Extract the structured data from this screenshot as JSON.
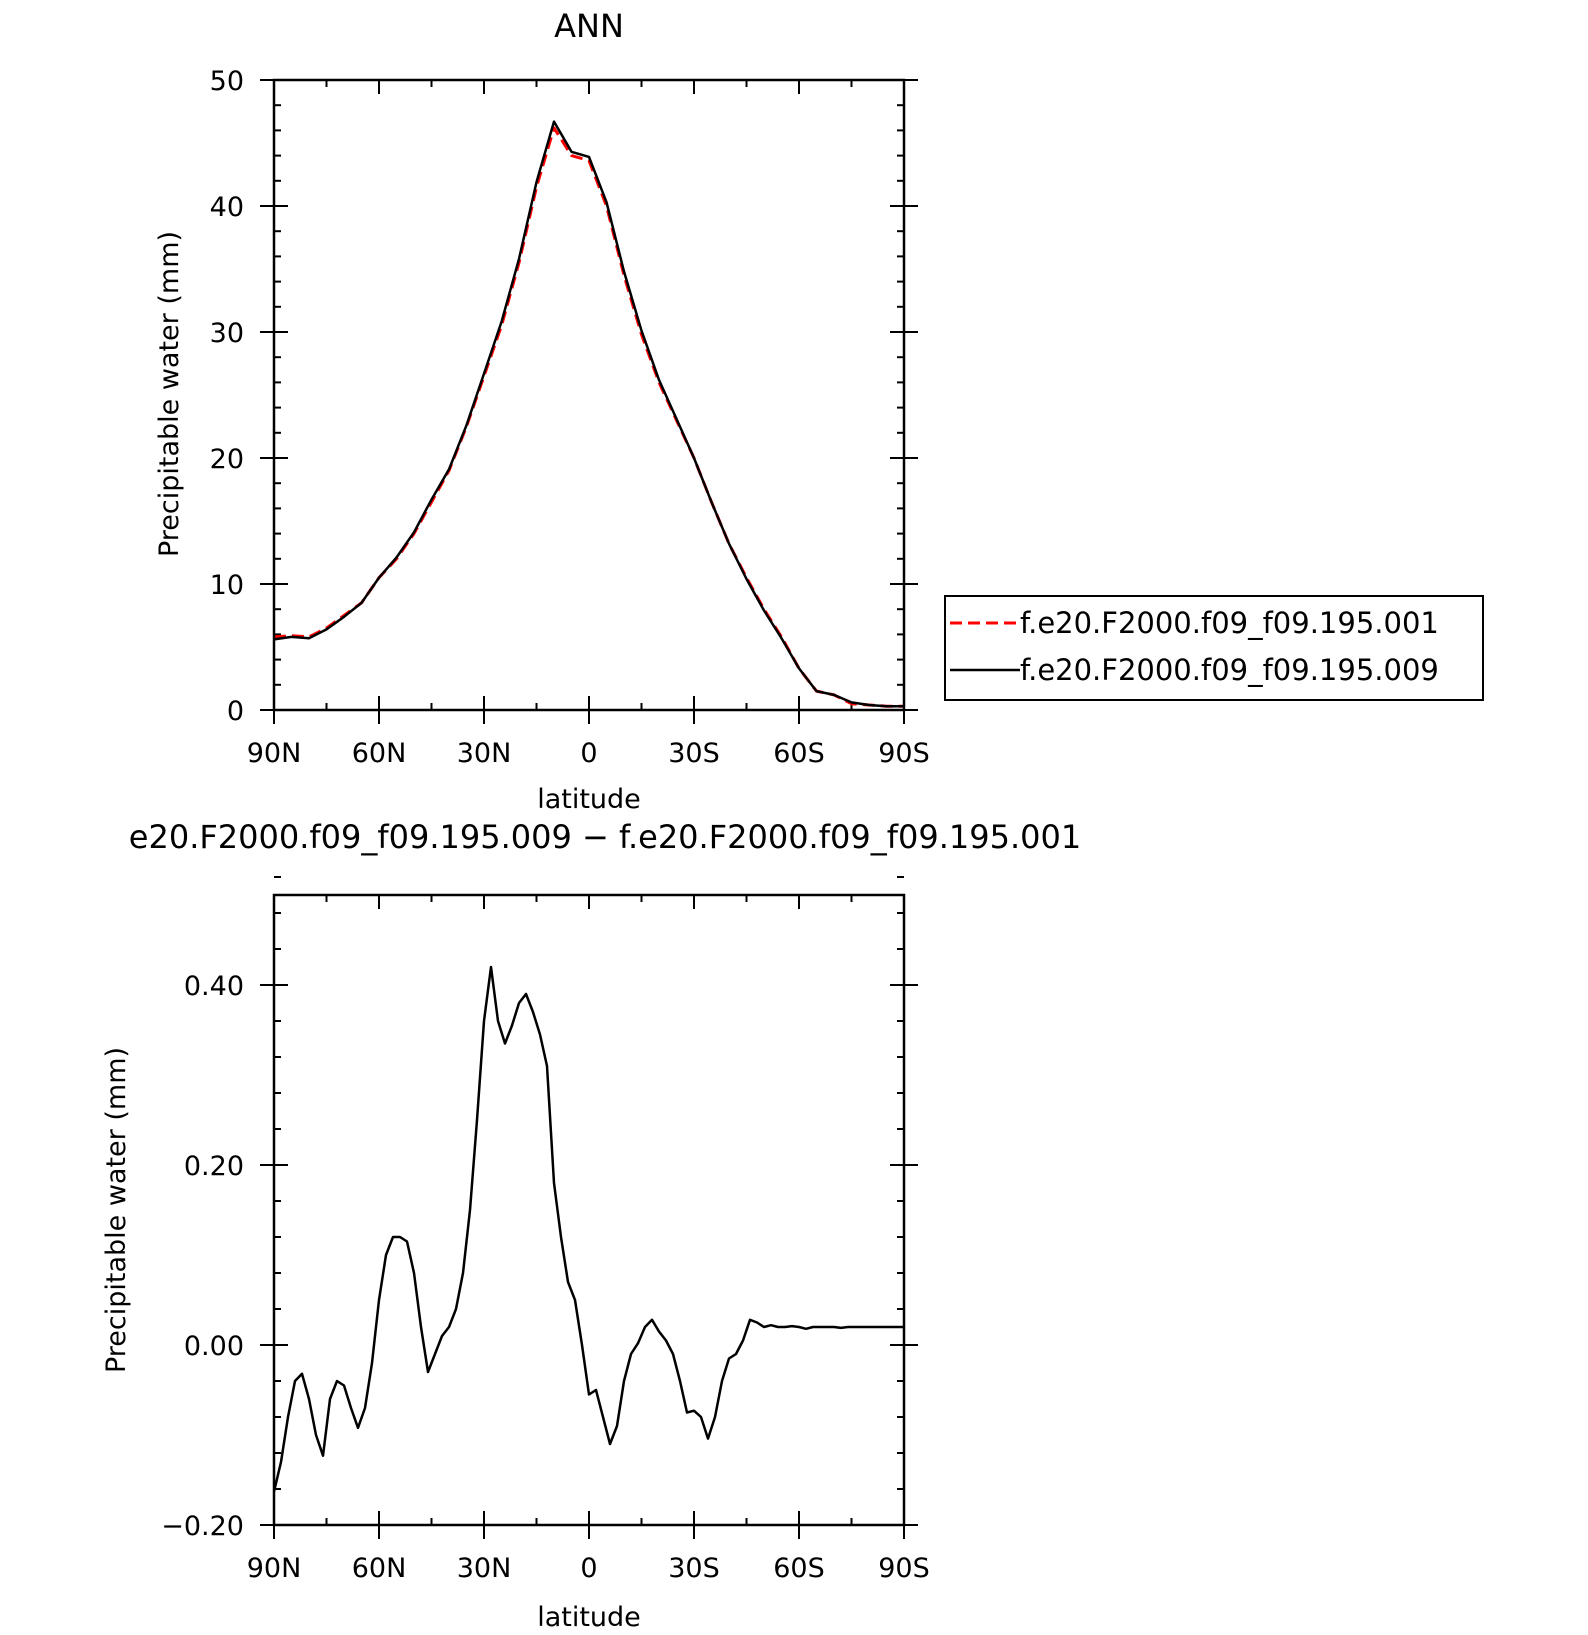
{
  "colors": {
    "model_001": "#ff0000",
    "model_009": "#000000",
    "axes": "#000000",
    "background": "#ffffff"
  },
  "chart_data": [
    {
      "type": "line",
      "title": "ANN",
      "xlabel": "latitude",
      "ylabel": "Precipitable water (mm)",
      "xlim": [
        90,
        -90
      ],
      "ylim": [
        0,
        50
      ],
      "x_tick_values": [
        90,
        60,
        30,
        0,
        -30,
        -60,
        -90
      ],
      "x_tick_labels": [
        "90N",
        "60N",
        "30N",
        "0",
        "30S",
        "60S",
        "90S"
      ],
      "y_tick_values": [
        0,
        10,
        20,
        30,
        40,
        50
      ],
      "y_tick_labels": [
        "0",
        "10",
        "20",
        "30",
        "40",
        "50"
      ],
      "legend": {
        "position": "right"
      },
      "series": [
        {
          "name": "f.e20.F2000.f09_f09.195.001",
          "color": "#ff0000",
          "dash": "dashed",
          "x": [
            90,
            85,
            80,
            75,
            70,
            65,
            60,
            55,
            50,
            45,
            40,
            35,
            30,
            25,
            20,
            15,
            10,
            5,
            0,
            -5,
            -10,
            -15,
            -20,
            -25,
            -30,
            -35,
            -40,
            -45,
            -50,
            -55,
            -60,
            -65,
            -70,
            -75,
            -80,
            -85,
            -90
          ],
          "y": [
            5.8,
            5.9,
            5.8,
            6.5,
            7.5,
            8.5,
            10.5,
            12.0,
            14.0,
            16.5,
            19.0,
            22.5,
            26.5,
            30.5,
            35.5,
            41.5,
            46.2,
            44.0,
            43.6,
            40.0,
            34.5,
            29.8,
            26.0,
            23.0,
            20.0,
            16.5,
            13.2,
            10.5,
            8.0,
            5.8,
            3.3,
            1.5,
            1.2,
            0.5,
            0.4,
            0.3,
            0.3
          ]
        },
        {
          "name": "f.e20.F2000.f09_f09.195.009",
          "color": "#000000",
          "dash": "solid",
          "x": [
            90,
            85,
            80,
            75,
            70,
            65,
            60,
            55,
            50,
            45,
            40,
            35,
            30,
            25,
            20,
            15,
            10,
            5,
            0,
            -5,
            -10,
            -15,
            -20,
            -25,
            -30,
            -35,
            -40,
            -45,
            -50,
            -55,
            -60,
            -65,
            -70,
            -75,
            -80,
            -85,
            -90
          ],
          "y": [
            5.6,
            5.8,
            5.7,
            6.4,
            7.4,
            8.5,
            10.5,
            12.1,
            14.1,
            16.7,
            19.1,
            22.6,
            26.7,
            30.8,
            35.8,
            41.9,
            46.7,
            44.3,
            43.9,
            40.3,
            34.8,
            30.1,
            26.2,
            23.1,
            20.0,
            16.5,
            13.2,
            10.4,
            7.9,
            5.7,
            3.3,
            1.5,
            1.2,
            0.6,
            0.4,
            0.3,
            0.3
          ]
        }
      ]
    },
    {
      "type": "line",
      "title": "e20.F2000.f09_f09.195.009 − f.e20.F2000.f09_f09.195.001",
      "xlabel": "latitude",
      "ylabel": "Precipitable water (mm)",
      "xlim": [
        90,
        -90
      ],
      "ylim": [
        -0.2,
        0.5
      ],
      "x_tick_values": [
        90,
        60,
        30,
        0,
        -30,
        -60,
        -90
      ],
      "x_tick_labels": [
        "90N",
        "60N",
        "30N",
        "0",
        "30S",
        "60S",
        "90S"
      ],
      "y_tick_values": [
        -0.2,
        0.0,
        0.2,
        0.4
      ],
      "y_tick_labels": [
        "−0.20",
        "0.00",
        "0.20",
        "0.40"
      ],
      "series": [
        {
          "color": "#000000",
          "dash": "solid",
          "x": [
            90,
            88,
            86,
            84,
            82,
            80,
            78,
            76,
            74,
            72,
            70,
            68,
            66,
            64,
            62,
            60,
            58,
            56,
            54,
            52,
            50,
            48,
            46,
            44,
            42,
            40,
            38,
            36,
            34,
            32,
            30,
            28,
            26,
            24,
            22,
            20,
            18,
            16,
            14,
            12,
            10,
            8,
            6,
            4,
            2,
            0,
            -2,
            -4,
            -6,
            -8,
            -10,
            -12,
            -14,
            -16,
            -18,
            -20,
            -22,
            -24,
            -26,
            -28,
            -30,
            -32,
            -34,
            -36,
            -38,
            -40,
            -42,
            -44,
            -46,
            -48,
            -50,
            -52,
            -54,
            -56,
            -58,
            -60,
            -62,
            -64,
            -66,
            -68,
            -70,
            -72,
            -74,
            -76,
            -78,
            -80,
            -82,
            -84,
            -86,
            -88,
            -90
          ],
          "y": [
            -0.163,
            -0.13,
            -0.08,
            -0.04,
            -0.032,
            -0.06,
            -0.1,
            -0.123,
            -0.06,
            -0.04,
            -0.045,
            -0.07,
            -0.092,
            -0.07,
            -0.02,
            0.05,
            0.1,
            0.12,
            0.12,
            0.115,
            0.08,
            0.02,
            -0.03,
            -0.01,
            0.01,
            0.02,
            0.04,
            0.08,
            0.15,
            0.25,
            0.36,
            0.42,
            0.36,
            0.335,
            0.355,
            0.38,
            0.39,
            0.37,
            0.345,
            0.31,
            0.18,
            0.12,
            0.07,
            0.05,
            0.0,
            -0.055,
            -0.05,
            -0.08,
            -0.11,
            -0.09,
            -0.04,
            -0.01,
            0.002,
            0.02,
            0.028,
            0.015,
            0.005,
            -0.01,
            -0.04,
            -0.075,
            -0.073,
            -0.08,
            -0.104,
            -0.08,
            -0.04,
            -0.015,
            -0.01,
            0.005,
            0.028,
            0.025,
            0.02,
            0.022,
            0.02,
            0.02,
            0.021,
            0.02,
            0.018,
            0.02,
            0.02,
            0.02,
            0.02,
            0.019,
            0.02,
            0.02,
            0.02,
            0.02,
            0.02,
            0.02,
            0.02,
            0.02,
            0.02
          ]
        }
      ]
    }
  ]
}
